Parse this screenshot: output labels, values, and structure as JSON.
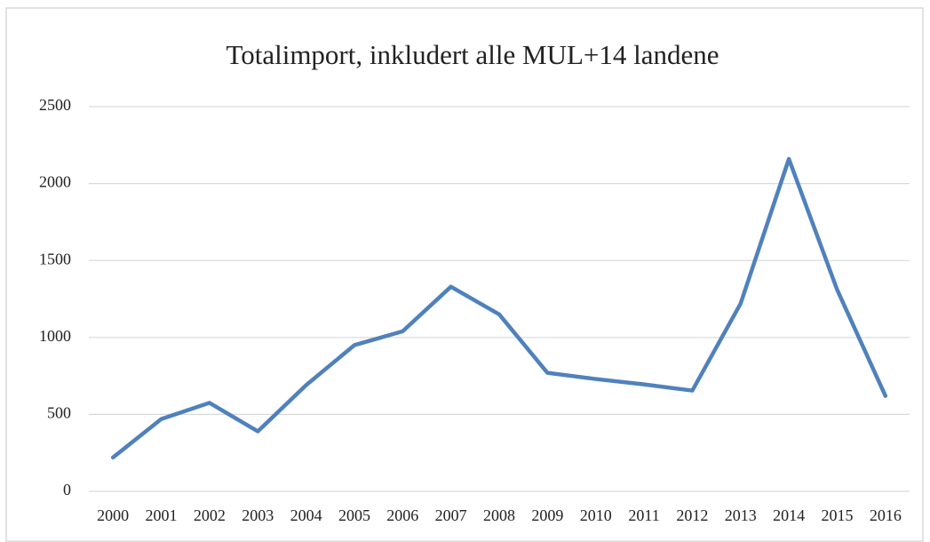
{
  "chart_data": {
    "type": "line",
    "title": "Totalimport, inkludert alle MUL+14 landene",
    "categories": [
      "2000",
      "2001",
      "2002",
      "2003",
      "2004",
      "2005",
      "2006",
      "2007",
      "2008",
      "2009",
      "2010",
      "2011",
      "2012",
      "2013",
      "2014",
      "2015",
      "2016"
    ],
    "series": [
      {
        "name": "Totalimport",
        "color": "#4f81bd",
        "values": [
          220,
          470,
          575,
          390,
          690,
          950,
          1040,
          1330,
          1150,
          770,
          730,
          695,
          655,
          1220,
          2160,
          1310,
          620
        ]
      }
    ],
    "ylim": [
      0,
      2500
    ],
    "yticks": [
      0,
      500,
      1000,
      1500,
      2000,
      2500
    ],
    "grid": true
  }
}
